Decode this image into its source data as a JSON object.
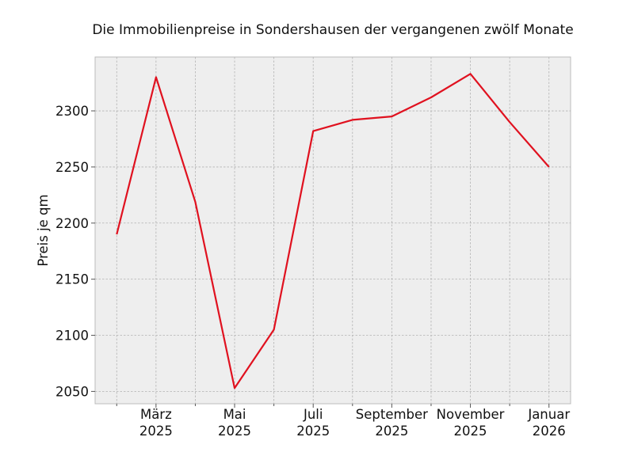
{
  "chart_data": {
    "type": "line",
    "title": "Die Immobilienpreise in Sondershausen der vergangenen zwölf Monate",
    "xlabel": "",
    "ylabel": "Preis je qm",
    "x": [
      "2025-02",
      "2025-03",
      "2025-04",
      "2025-05",
      "2025-06",
      "2025-07",
      "2025-08",
      "2025-09",
      "2025-10",
      "2025-11",
      "2025-12",
      "2026-01"
    ],
    "series": [
      {
        "color": "#e0111f",
        "values": [
          2190,
          2330,
          2219,
          2053,
          2105,
          2282,
          2292,
          2295,
          2312,
          2333,
          2290,
          2250
        ]
      }
    ],
    "ylim": [
      2039,
      2348
    ],
    "yticks": [
      2050,
      2100,
      2150,
      2200,
      2250,
      2300
    ],
    "xticks": [
      {
        "x": "2025-03",
        "label": [
          "März",
          "2025"
        ]
      },
      {
        "x": "2025-05",
        "label": [
          "Mai",
          "2025"
        ]
      },
      {
        "x": "2025-07",
        "label": [
          "Juli",
          "2025"
        ]
      },
      {
        "x": "2025-09",
        "label": [
          "September",
          "2025"
        ]
      },
      {
        "x": "2025-11",
        "label": [
          "November",
          "2025"
        ]
      },
      {
        "x": "2026-01",
        "label": [
          "Januar",
          "2026"
        ]
      }
    ],
    "minor_xticks": [
      "2025-02",
      "2025-04",
      "2025-06",
      "2025-08",
      "2025-10",
      "2025-12"
    ],
    "grid": true,
    "background": "#eeeeee"
  }
}
